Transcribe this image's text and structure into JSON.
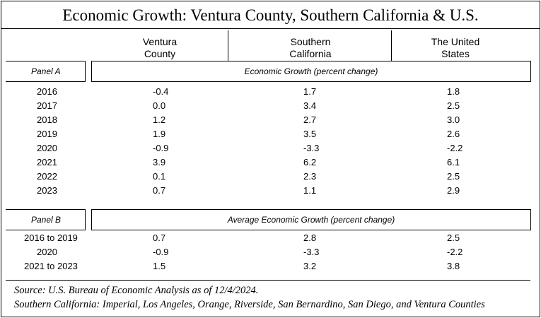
{
  "title": "Economic Growth: Ventura County, Southern California & U.S.",
  "columns": [
    {
      "line1": "Ventura",
      "line2": "County"
    },
    {
      "line1": "Southern",
      "line2": "California"
    },
    {
      "line1": "The United",
      "line2": "States"
    }
  ],
  "panel_a": {
    "label": "Panel A",
    "caption": "Economic Growth (percent change)",
    "rows": [
      {
        "year": "2016",
        "ventura": "-0.4",
        "socal": "1.7",
        "us": "1.8"
      },
      {
        "year": "2017",
        "ventura": "0.0",
        "socal": "3.4",
        "us": "2.5"
      },
      {
        "year": "2018",
        "ventura": "1.2",
        "socal": "2.7",
        "us": "3.0"
      },
      {
        "year": "2019",
        "ventura": "1.9",
        "socal": "3.5",
        "us": "2.6"
      },
      {
        "year": "2020",
        "ventura": "-0.9",
        "socal": "-3.3",
        "us": "-2.2"
      },
      {
        "year": "2021",
        "ventura": "3.9",
        "socal": "6.2",
        "us": "6.1"
      },
      {
        "year": "2022",
        "ventura": "0.1",
        "socal": "2.3",
        "us": "2.5"
      },
      {
        "year": "2023",
        "ventura": "0.7",
        "socal": "1.1",
        "us": "2.9"
      }
    ]
  },
  "panel_b": {
    "label": "Panel B",
    "caption": "Average Economic Growth (percent change)",
    "rows": [
      {
        "year": "2016 to 2019",
        "ventura": "0.7",
        "socal": "2.8",
        "us": "2.5"
      },
      {
        "year": "2020",
        "ventura": "-0.9",
        "socal": "-3.3",
        "us": "-2.2"
      },
      {
        "year": "2021 to 2023",
        "ventura": "1.5",
        "socal": "3.2",
        "us": "3.8"
      }
    ]
  },
  "source_line1": "Source: U.S. Bureau of Economic Analysis as of 12/4/2024.",
  "source_line2": "Southern California: Imperial, Los Angeles, Orange, Riverside, San Bernardino, San Diego, and Ventura Counties"
}
